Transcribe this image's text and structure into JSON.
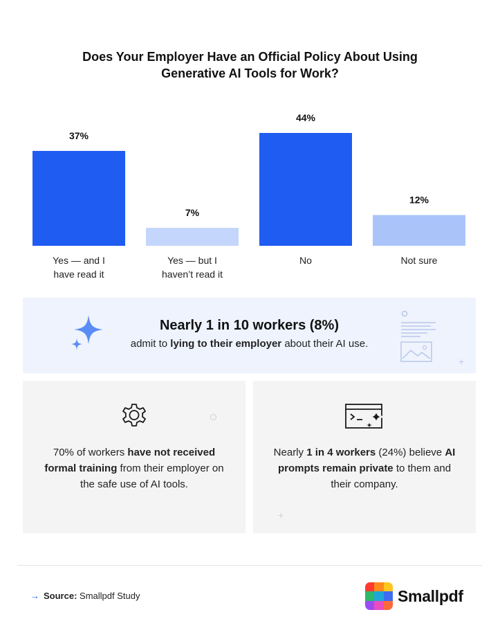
{
  "title": {
    "line1": "Does Your Employer Have an Official Policy About Using",
    "line2": "Generative AI Tools for Work?"
  },
  "chart_data": {
    "type": "bar",
    "title": "Does Your Employer Have an Official Policy About Using Generative AI Tools for Work?",
    "categories": [
      [
        "Yes — and I",
        "have read it"
      ],
      [
        "Yes — but I",
        "haven’t read it"
      ],
      [
        "No"
      ],
      [
        "Not sure"
      ]
    ],
    "values": [
      37,
      7,
      44,
      12
    ],
    "value_labels": [
      "37%",
      "7%",
      "44%",
      "12%"
    ],
    "colors": [
      "#1f5cf2",
      "#c4d6fb",
      "#1f5cf2",
      "#aac4fa"
    ],
    "ylim": [
      0,
      44
    ],
    "grid": false,
    "legend": "none"
  },
  "callout": {
    "headline": "Nearly 1 in 10 workers (8%)",
    "sub_before": "admit to ",
    "sub_bold": "lying to their employer",
    "sub_after": " about their AI use."
  },
  "cards": {
    "left": {
      "icon": "gear-icon",
      "t1": "70% of workers ",
      "t2": "have not received formal training",
      "t3": " from their employer on the safe use of AI tools."
    },
    "right": {
      "icon": "terminal-sparkle-icon",
      "t1": "Nearly ",
      "t2": "1 in 4 workers",
      "t3": " (24%) believe ",
      "t4": "AI prompts remain private",
      "t5": " to them and their company."
    }
  },
  "footer": {
    "source_label": "Source:",
    "source_text": " Smallpdf Study",
    "brand": "Smallpdf",
    "brand_colors": [
      "#ff3a2f",
      "#ff8a1c",
      "#ffc51f",
      "#2fb86a",
      "#1fa6d8",
      "#3f6df2",
      "#9a4cf2",
      "#e94cc0",
      "#ff6a3a"
    ]
  }
}
